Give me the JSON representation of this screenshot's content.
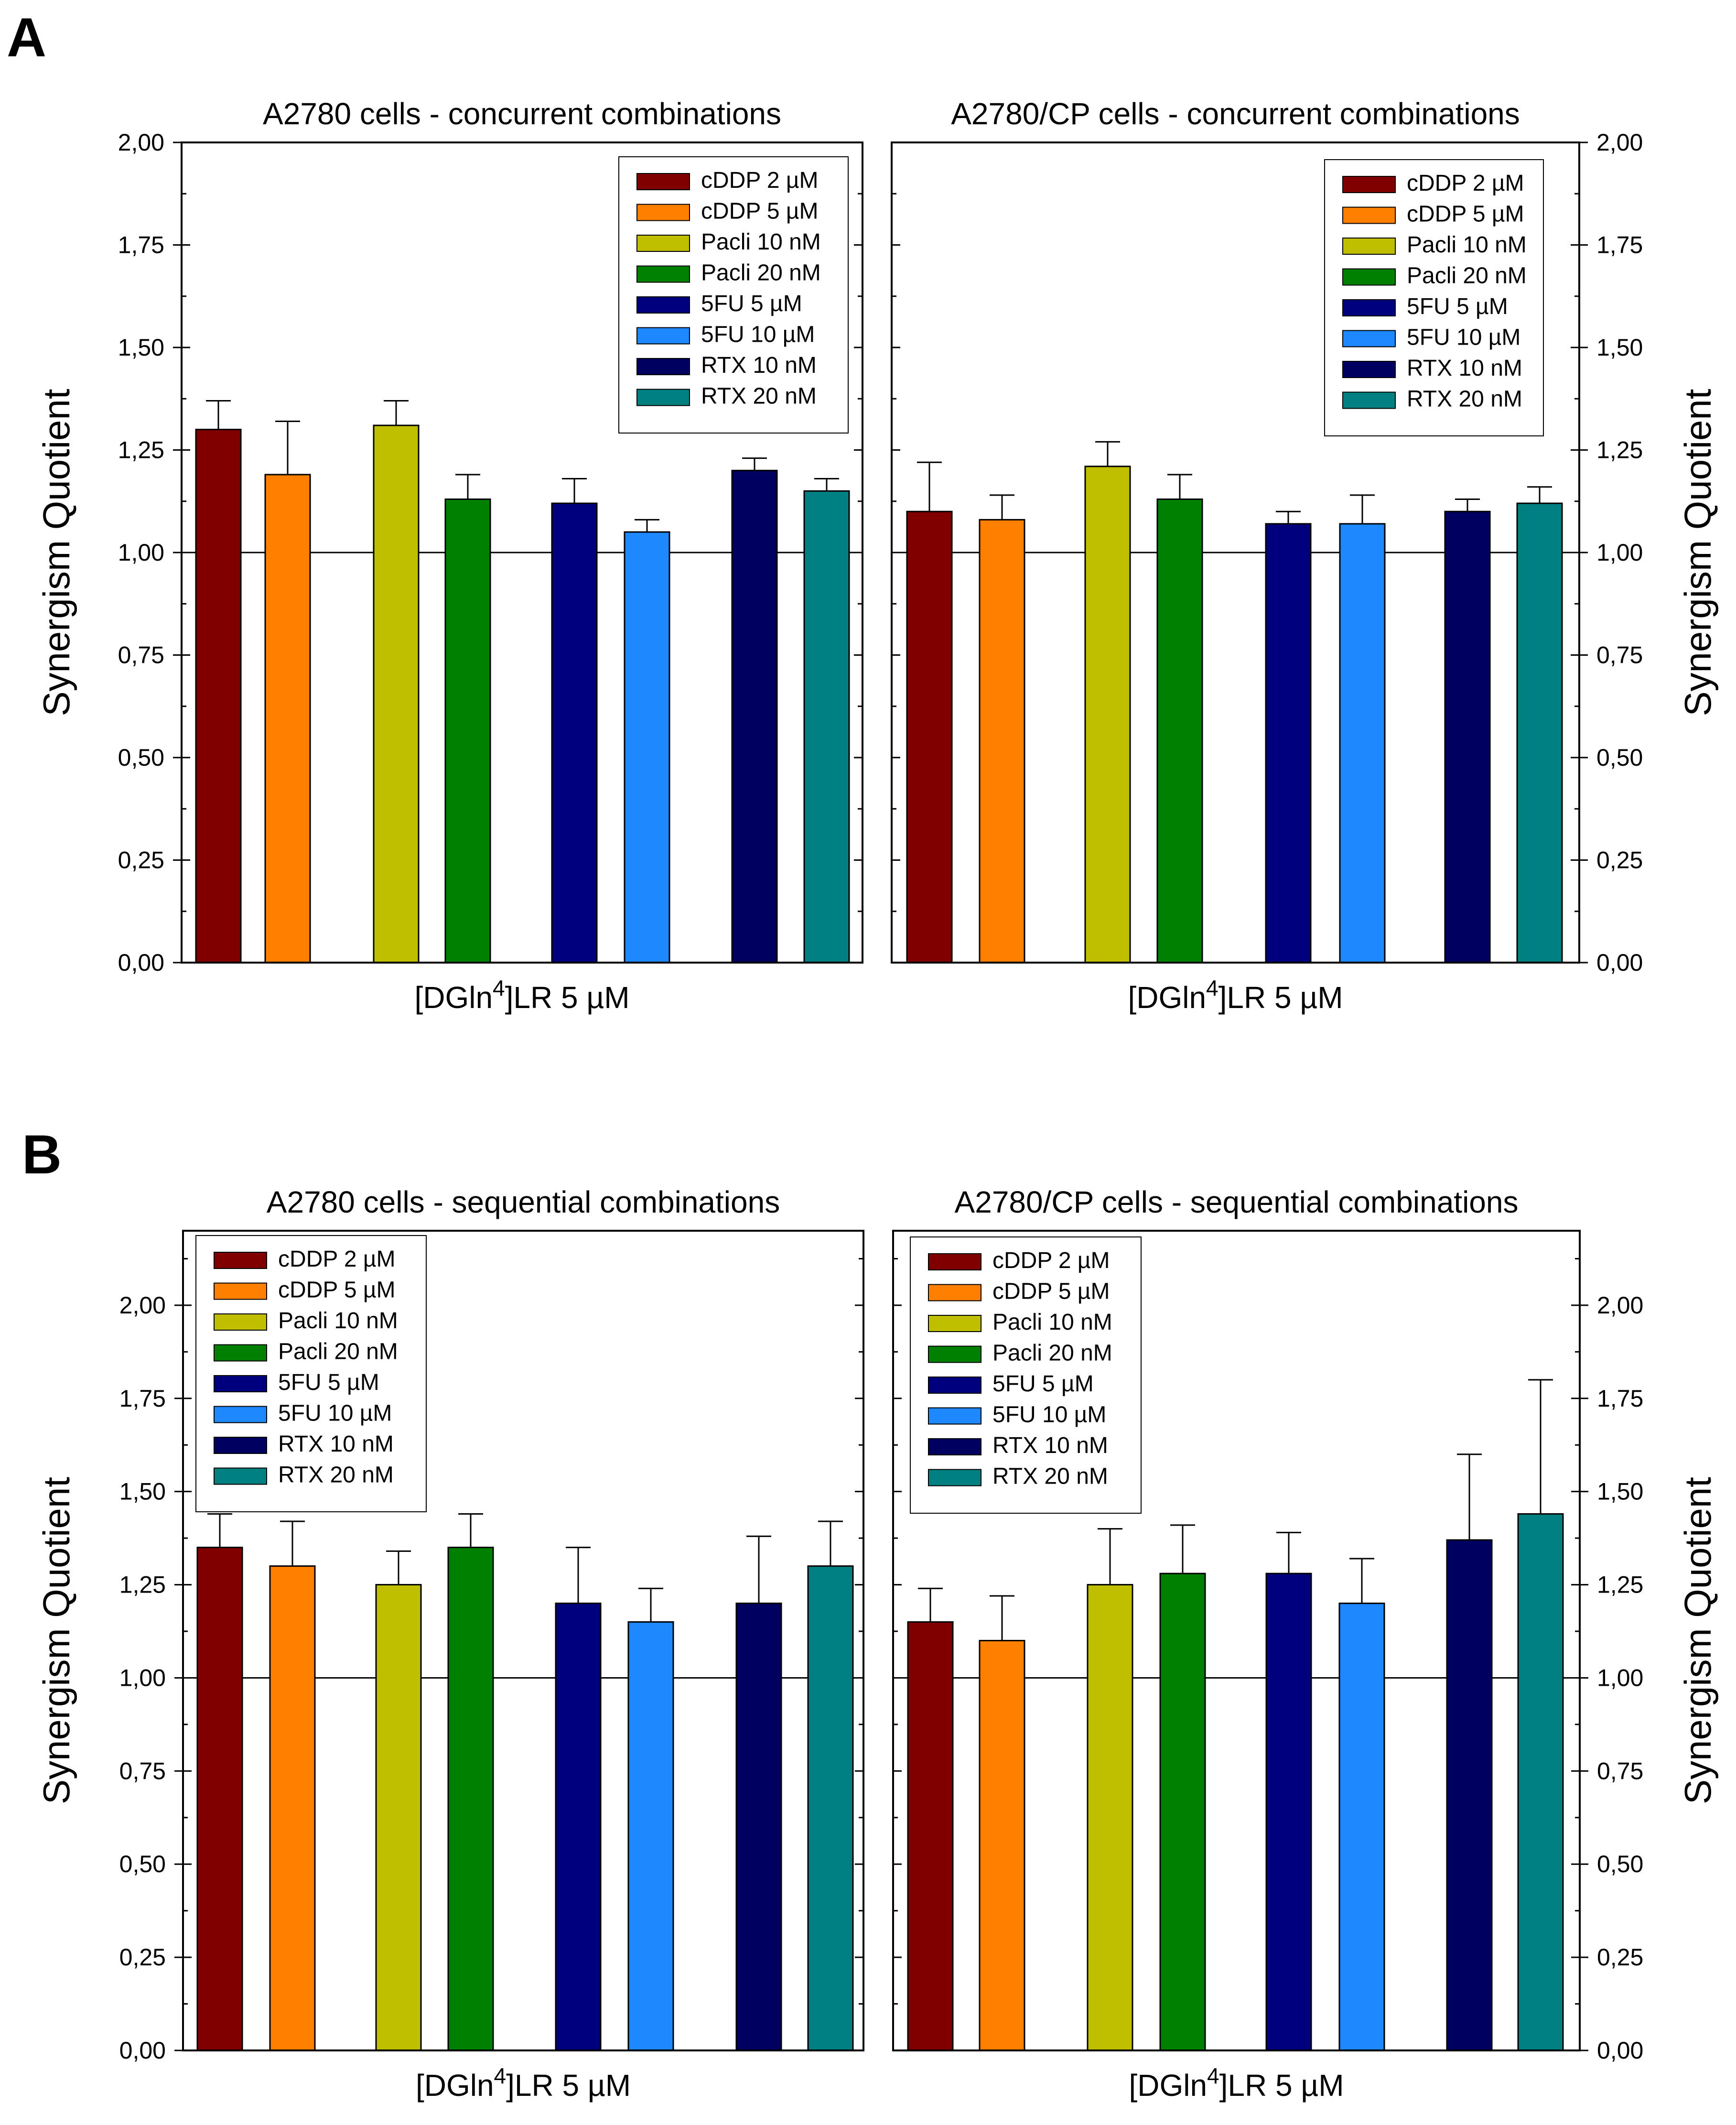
{
  "panels": [
    {
      "letter": "A"
    },
    {
      "letter": "B"
    }
  ],
  "series_colors": [
    "#800000",
    "#ff7f00",
    "#bfbf00",
    "#008000",
    "#00007f",
    "#1e88ff",
    "#000060",
    "#008080"
  ],
  "chart_data": [
    {
      "type": "bar",
      "title": "A2780 cells - concurrent combinations",
      "xlabel": "[DGln⁴]LR 5 µM",
      "ylabel": "Synergism Quotient",
      "ylim": [
        0,
        2
      ],
      "yticks": [
        "0,00",
        "0,25",
        "0,50",
        "0,75",
        "1,00",
        "1,25",
        "1,50",
        "1,75",
        "2,00"
      ],
      "yaxis_side": "left",
      "legend_position": "top-right",
      "categories": [
        "cDDP 2 µM",
        "cDDP 5 µM",
        "Pacli 10 nM",
        "Pacli 20 nM",
        "5FU 5 µM",
        "5FU 10 µM",
        "RTX 10 nM",
        "RTX 20 nM"
      ],
      "values": [
        1.3,
        1.19,
        1.31,
        1.13,
        1.12,
        1.05,
        1.2,
        1.15
      ],
      "errors": [
        0.07,
        0.13,
        0.06,
        0.06,
        0.06,
        0.03,
        0.03,
        0.03
      ],
      "reference_line": 1.0
    },
    {
      "type": "bar",
      "title": "A2780/CP cells - concurrent combinations",
      "xlabel": "[DGln⁴]LR 5 µM",
      "ylabel": "Synergism Quotient",
      "ylim": [
        0,
        2
      ],
      "yticks": [
        "0,00",
        "0,25",
        "0,50",
        "0,75",
        "1,00",
        "1,25",
        "1,50",
        "1,75",
        "2,00"
      ],
      "yaxis_side": "right",
      "legend_position": "top-right",
      "categories": [
        "cDDP 2 µM",
        "cDDP 5 µM",
        "Pacli 10 nM",
        "Pacli 20 nM",
        "5FU 5 µM",
        "5FU 10 µM",
        "RTX 10 nM",
        "RTX 20 nM"
      ],
      "values": [
        1.1,
        1.08,
        1.21,
        1.13,
        1.07,
        1.07,
        1.1,
        1.12
      ],
      "errors": [
        0.12,
        0.06,
        0.06,
        0.06,
        0.03,
        0.07,
        0.03,
        0.04
      ],
      "reference_line": 1.0
    },
    {
      "type": "bar",
      "title": "A2780 cells - sequential combinations",
      "xlabel": "[DGln⁴]LR 5 µM",
      "ylabel": "Synergism Quotient",
      "ylim": [
        0,
        2.2
      ],
      "yticks": [
        "0,00",
        "0,25",
        "0,50",
        "0,75",
        "1,00",
        "1,25",
        "1,50",
        "1,75",
        "2,00"
      ],
      "yaxis_side": "left",
      "legend_position": "top-left",
      "categories": [
        "cDDP 2 µM",
        "cDDP 5 µM",
        "Pacli 10 nM",
        "Pacli 20 nM",
        "5FU 5 µM",
        "5FU 10 µM",
        "RTX 10 nM",
        "RTX 20 nM"
      ],
      "values": [
        1.35,
        1.3,
        1.25,
        1.35,
        1.2,
        1.15,
        1.2,
        1.3
      ],
      "errors": [
        0.09,
        0.12,
        0.09,
        0.09,
        0.15,
        0.09,
        0.18,
        0.12
      ],
      "reference_line": 1.0
    },
    {
      "type": "bar",
      "title": "A2780/CP cells - sequential combinations",
      "xlabel": "[DGln⁴]LR 5 µM",
      "ylabel": "Synergism Quotient",
      "ylim": [
        0,
        2.2
      ],
      "yticks": [
        "0,00",
        "0,25",
        "0,50",
        "0,75",
        "1,00",
        "1,25",
        "1,50",
        "1,75",
        "2,00"
      ],
      "yaxis_side": "right",
      "legend_position": "top-left",
      "categories": [
        "cDDP 2 µM",
        "cDDP 5 µM",
        "Pacli 10 nM",
        "Pacli 20 nM",
        "5FU 5 µM",
        "5FU 10 µM",
        "RTX 10 nM",
        "RTX 20 nM"
      ],
      "values": [
        1.15,
        1.1,
        1.25,
        1.28,
        1.28,
        1.2,
        1.37,
        1.44
      ],
      "errors": [
        0.09,
        0.12,
        0.15,
        0.13,
        0.11,
        0.12,
        0.23,
        0.36
      ],
      "reference_line": 1.0
    }
  ]
}
